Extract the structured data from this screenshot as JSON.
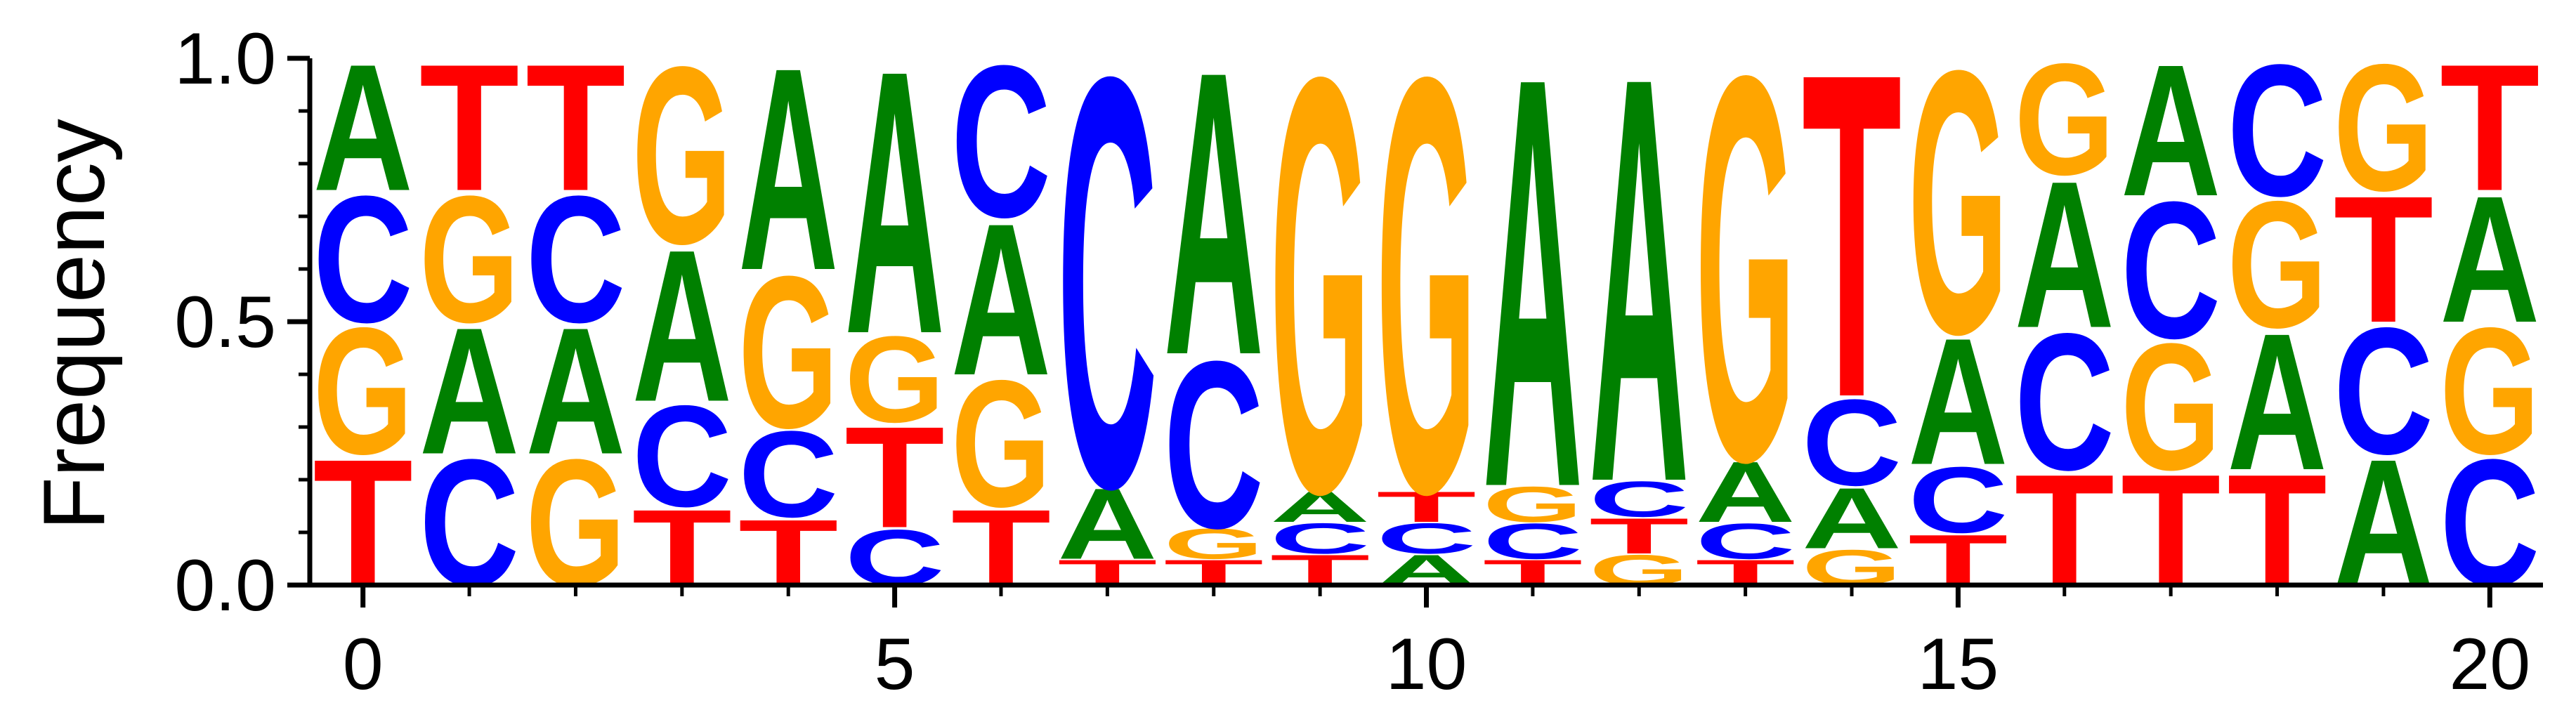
{
  "chart_data": {
    "type": "sequence_logo",
    "ylabel": "Frequency",
    "xlim": [
      -0.5,
      20.5
    ],
    "ylim": [
      0,
      1
    ],
    "x_ticks": [
      0,
      5,
      10,
      15,
      20
    ],
    "x_tick_labels": [
      "0",
      "5",
      "10",
      "15",
      "20"
    ],
    "y_ticks": [
      0.0,
      0.5,
      1.0
    ],
    "y_tick_labels": [
      "0.0",
      "0.5",
      "1.0"
    ],
    "colors": {
      "A": "#008000",
      "C": "#0000ff",
      "G": "#ffa500",
      "T": "#ff0000"
    },
    "positions": [
      {
        "x": 0,
        "stack": [
          [
            "T",
            0.25
          ],
          [
            "G",
            0.25
          ],
          [
            "C",
            0.25
          ],
          [
            "A",
            0.25
          ]
        ]
      },
      {
        "x": 1,
        "stack": [
          [
            "C",
            0.25
          ],
          [
            "A",
            0.25
          ],
          [
            "G",
            0.25
          ],
          [
            "T",
            0.25
          ]
        ]
      },
      {
        "x": 2,
        "stack": [
          [
            "G",
            0.25
          ],
          [
            "A",
            0.25
          ],
          [
            "C",
            0.25
          ],
          [
            "T",
            0.25
          ]
        ]
      },
      {
        "x": 3,
        "stack": [
          [
            "T",
            0.15
          ],
          [
            "C",
            0.2
          ],
          [
            "A",
            0.3
          ],
          [
            "G",
            0.35
          ]
        ]
      },
      {
        "x": 4,
        "stack": [
          [
            "T",
            0.13
          ],
          [
            "C",
            0.17
          ],
          [
            "G",
            0.3
          ],
          [
            "A",
            0.4
          ]
        ]
      },
      {
        "x": 5,
        "stack": [
          [
            "C",
            0.11
          ],
          [
            "T",
            0.2
          ],
          [
            "G",
            0.17
          ],
          [
            "A",
            0.52
          ]
        ]
      },
      {
        "x": 6,
        "stack": [
          [
            "T",
            0.15
          ],
          [
            "G",
            0.25
          ],
          [
            "A",
            0.3
          ],
          [
            "C",
            0.3
          ]
        ]
      },
      {
        "x": 7,
        "stack": [
          [
            "T",
            0.05
          ],
          [
            "A",
            0.14
          ],
          [
            "C",
            0.81
          ]
        ]
      },
      {
        "x": 8,
        "stack": [
          [
            "T",
            0.05
          ],
          [
            "G",
            0.06
          ],
          [
            "C",
            0.33
          ],
          [
            "A",
            0.56
          ]
        ]
      },
      {
        "x": 9,
        "stack": [
          [
            "T",
            0.06
          ],
          [
            "C",
            0.06
          ],
          [
            "A",
            0.06
          ],
          [
            "G",
            0.82
          ]
        ]
      },
      {
        "x": 10,
        "stack": [
          [
            "A",
            0.06
          ],
          [
            "C",
            0.06
          ],
          [
            "T",
            0.06
          ],
          [
            "G",
            0.82
          ]
        ]
      },
      {
        "x": 11,
        "stack": [
          [
            "T",
            0.05
          ],
          [
            "C",
            0.07
          ],
          [
            "G",
            0.07
          ],
          [
            "A",
            0.81
          ]
        ]
      },
      {
        "x": 12,
        "stack": [
          [
            "G",
            0.06
          ],
          [
            "T",
            0.07
          ],
          [
            "C",
            0.07
          ],
          [
            "A",
            0.8
          ]
        ]
      },
      {
        "x": 13,
        "stack": [
          [
            "T",
            0.05
          ],
          [
            "C",
            0.07
          ],
          [
            "A",
            0.12
          ],
          [
            "G",
            0.76
          ]
        ]
      },
      {
        "x": 14,
        "stack": [
          [
            "G",
            0.07
          ],
          [
            "A",
            0.12
          ],
          [
            "C",
            0.17
          ],
          [
            "T",
            0.64
          ]
        ]
      },
      {
        "x": 15,
        "stack": [
          [
            "T",
            0.1
          ],
          [
            "C",
            0.13
          ],
          [
            "A",
            0.25
          ],
          [
            "G",
            0.52
          ]
        ]
      },
      {
        "x": 16,
        "stack": [
          [
            "T",
            0.22
          ],
          [
            "C",
            0.27
          ],
          [
            "A",
            0.29
          ],
          [
            "G",
            0.22
          ]
        ]
      },
      {
        "x": 17,
        "stack": [
          [
            "T",
            0.22
          ],
          [
            "G",
            0.25
          ],
          [
            "C",
            0.27
          ],
          [
            "A",
            0.26
          ]
        ]
      },
      {
        "x": 18,
        "stack": [
          [
            "T",
            0.22
          ],
          [
            "A",
            0.27
          ],
          [
            "G",
            0.25
          ],
          [
            "C",
            0.26
          ]
        ]
      },
      {
        "x": 19,
        "stack": [
          [
            "A",
            0.25
          ],
          [
            "C",
            0.25
          ],
          [
            "T",
            0.25
          ],
          [
            "G",
            0.25
          ]
        ]
      },
      {
        "x": 20,
        "stack": [
          [
            "C",
            0.25
          ],
          [
            "G",
            0.25
          ],
          [
            "A",
            0.25
          ],
          [
            "T",
            0.25
          ]
        ]
      }
    ]
  }
}
